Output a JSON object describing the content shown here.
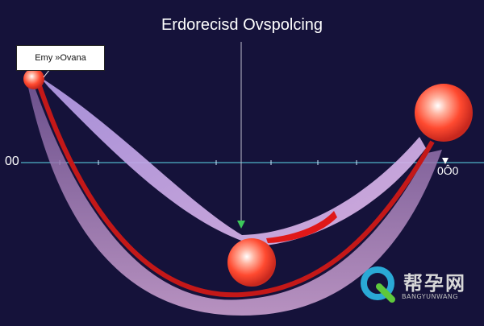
{
  "title": "Erdorecisd Ovspolcing",
  "callout_label": "Emy »Ovana",
  "axis": {
    "left_label": "00",
    "right_label": "0Ô0"
  },
  "watermark": {
    "text_cn": "帮孕网",
    "text_en": "BANGYUNWANG"
  },
  "colors": {
    "background": "#15123a",
    "band_outer": "#b98fc8",
    "band_inner": "#c9a6e0",
    "red_line": "#c41818",
    "sphere": "#ff5a3c",
    "axis_line": "#4fb3c8",
    "guide_arrow": "#3cc85a"
  },
  "icons": {
    "watermark_logo": "q-logo-icon"
  }
}
